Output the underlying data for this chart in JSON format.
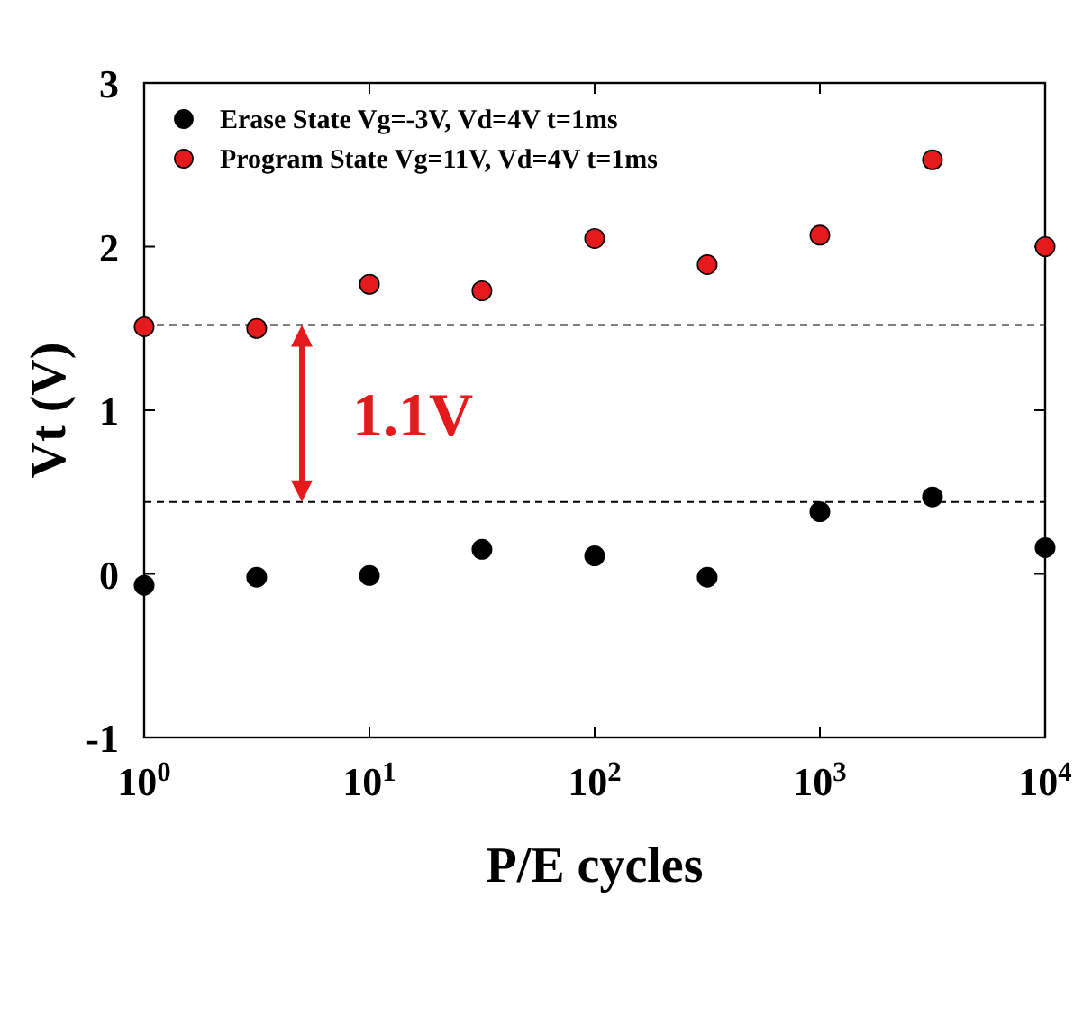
{
  "chart_data": {
    "type": "scatter",
    "xlabel": "P/E cycles",
    "ylabel": "Vt (V)",
    "log": "x",
    "xlim": [
      1,
      10000
    ],
    "ylim": [
      -1,
      3
    ],
    "xticks": [
      {
        "value": 1,
        "label": "10$^{0}$"
      },
      {
        "value": 10,
        "label": "10$^{1}$"
      },
      {
        "value": 100,
        "label": "10$^{2}$"
      },
      {
        "value": 1000,
        "label": "10$^{3}$"
      },
      {
        "value": 10000,
        "label": "10$^{4}$"
      }
    ],
    "yticks": [
      -1,
      0,
      1,
      2,
      3
    ],
    "x": [
      1,
      3.16,
      10,
      31.6,
      100,
      316,
      1000,
      3160,
      10000
    ],
    "series": [
      {
        "name": "Erase State Vg=-3V, Vd=4V t=1ms",
        "color": "#000000",
        "values": [
          -0.07,
          -0.02,
          -0.01,
          0.15,
          0.11,
          -0.02,
          0.38,
          0.47,
          0.16
        ]
      },
      {
        "name": "Program State Vg=11V, Vd=4V t=1ms",
        "color": "#e41a1c",
        "values": [
          1.51,
          1.5,
          1.77,
          1.73,
          2.05,
          1.89,
          2.07,
          2.53,
          2.0
        ]
      }
    ],
    "ref_lines": [
      {
        "axis": "y",
        "value": 1.52,
        "line_style": "dashed",
        "color": "#000000"
      },
      {
        "axis": "y",
        "value": 0.44,
        "line_style": "dashed",
        "color": "#000000"
      }
    ],
    "annotations": [
      "1.1V"
    ],
    "marker": "circle",
    "legend": "top left",
    "grid": false
  }
}
